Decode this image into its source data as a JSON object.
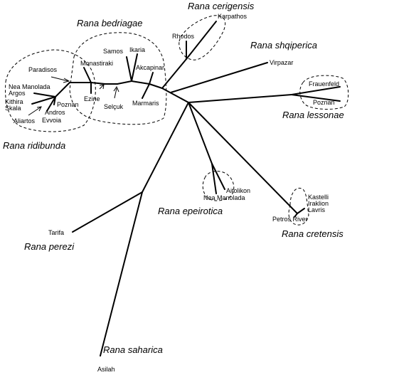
{
  "species": {
    "bedriagae": "Rana bedriagae",
    "cerigensis": "Rana cerigensis",
    "shqiperica": "Rana shqiperica",
    "lessonae": "Rana lessonae",
    "ridibunda": "Rana ridibunda",
    "epeirotica": "Rana epeirotica",
    "cretensis": "Rana cretensis",
    "perezi": "Rana perezi",
    "saharica": "Rana saharica"
  },
  "leaves": {
    "karpathos": "Karpathos",
    "rhodos": "Rhodos",
    "samos": "Samos",
    "ikaria": "Ikaria",
    "monastiraki": "Monastiraki",
    "paradisos": "Paradisos",
    "akcapinar": "Akcapinar",
    "virpazar": "Virpazar",
    "frauenfeld": "Frauenfeld",
    "poznan_lessonae": "Poznan",
    "nea_manolada_ridibunda": "Nea Manolada",
    "argos": "Argos",
    "kithira": "Kithira",
    "skala": "Skala",
    "poznan_ridibunda": "Poznan",
    "ezine": "Ezine",
    "marmaris": "Marmaris",
    "selcuk": "Selçuk",
    "andros": "Andros",
    "aliartos": "Aliartos",
    "evvoia": "Evvoia",
    "aitolikon": "Aitolikon",
    "nea_manolada_epeirotica": "Nea Manolada",
    "kastelli": "Kastelli",
    "iraklion": "Iraklion",
    "lavris": "Lavris",
    "petros_river": "Petros River",
    "tarifa": "Tarifa",
    "asilah": "Asilah"
  }
}
